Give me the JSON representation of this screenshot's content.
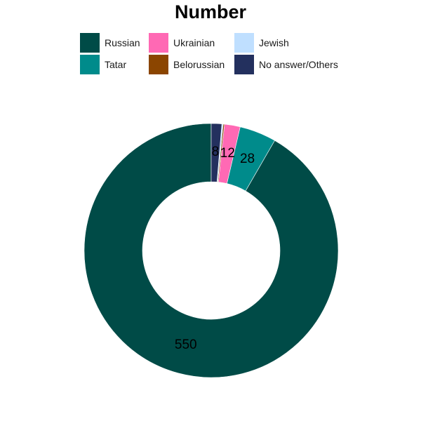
{
  "chart_data": {
    "type": "pie",
    "title": "Number",
    "donut": true,
    "categories": [
      "Russian",
      "Tatar",
      "Ukrainian",
      "Belorussian",
      "Jewish",
      "No answer/Others"
    ],
    "values": [
      550,
      28,
      12,
      1,
      1,
      8
    ],
    "value_labels": [
      "550",
      "28",
      "12",
      "",
      "",
      "8"
    ],
    "colors": [
      "#004B47",
      "#008B8B",
      "#FF69B4",
      "#8B4500",
      "#BFDFFF",
      "#23305E"
    ],
    "legend": {
      "position": "top",
      "items": [
        {
          "label": "Russian",
          "color": "#004B47"
        },
        {
          "label": "Ukrainian",
          "color": "#FF69B4"
        },
        {
          "label": "Jewish",
          "color": "#BFDFFF"
        },
        {
          "label": "Tatar",
          "color": "#008B8B"
        },
        {
          "label": "Belorussian",
          "color": "#8B4500"
        },
        {
          "label": "No answer/Others",
          "color": "#23305E"
        }
      ]
    }
  }
}
